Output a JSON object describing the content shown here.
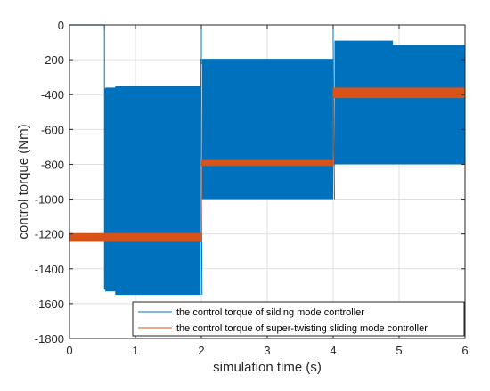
{
  "chart_data": {
    "type": "line",
    "title": "",
    "xlabel": "simulation time (s)",
    "ylabel": "control torque (Nm)",
    "xlim": [
      0,
      6
    ],
    "ylim": [
      -1800,
      0
    ],
    "xticks": [
      0,
      1,
      2,
      3,
      4,
      5,
      6
    ],
    "yticks": [
      0,
      -200,
      -400,
      -600,
      -800,
      -1000,
      -1200,
      -1400,
      -1600,
      -1800
    ],
    "grid": true,
    "legend_position": "bottom-right",
    "series": [
      {
        "name": "the control torque of silding mode controller",
        "color": "#0072BD",
        "style": "chattering band",
        "bands": [
          {
            "x": [
              0,
              0.53
            ],
            "low": 0,
            "high": 0
          },
          {
            "x": [
              0.53,
              0.55
            ],
            "low": -1520,
            "high": -365
          },
          {
            "x": [
              0.55,
              0.7
            ],
            "low": -1530,
            "high": -360
          },
          {
            "x": [
              0.7,
              1.99
            ],
            "low": -1550,
            "high": -350
          },
          {
            "x": [
              2.01,
              4.0
            ],
            "low": -1000,
            "high": -195
          },
          {
            "x": [
              4.02,
              4.9
            ],
            "low": -800,
            "high": -90
          },
          {
            "x": [
              4.9,
              6.0
            ],
            "low": -800,
            "high": -115
          }
        ],
        "spikes": [
          {
            "x": 0.53,
            "y": 0
          },
          {
            "x": 2.0,
            "y": 0
          },
          {
            "x": 4.0,
            "y": 0
          }
        ]
      },
      {
        "name": "the control torque of super-twisting sliding mode controller",
        "color": "#D95319",
        "style": "chattering band",
        "bands": [
          {
            "x": [
              0,
              2.0
            ],
            "low": -1245,
            "high": -1195
          },
          {
            "x": [
              2.0,
              4.0
            ],
            "low": -810,
            "high": -775
          },
          {
            "x": [
              4.0,
              6.0
            ],
            "low": -420,
            "high": -360
          }
        ]
      }
    ]
  }
}
